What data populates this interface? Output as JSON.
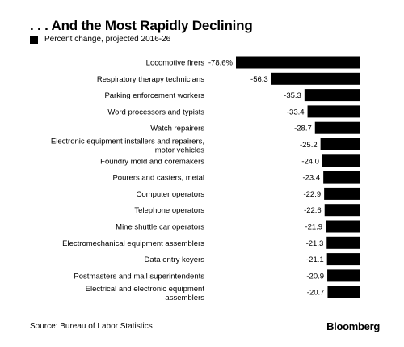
{
  "title": ". . . And the Most Rapidly Declining",
  "source": "Source: Bureau of Labor Statistics",
  "brand": "Bloomberg",
  "colors": {
    "bar": "#000000",
    "text": "#000000",
    "background": "#ffffff"
  },
  "chart_data": {
    "type": "bar",
    "orientation": "horizontal",
    "legend": "Percent change, projected 2016-26",
    "legend_position": "top-left",
    "grid": false,
    "xlim": [
      -78.6,
      0
    ],
    "categories": [
      "Locomotive firers",
      "Respiratory therapy technicians",
      "Parking enforcement workers",
      "Word processors and typists",
      "Watch repairers",
      "Electronic equipment installers and repairers, motor vehicles",
      "Foundry mold and coremakers",
      "Pourers and casters, metal",
      "Computer operators",
      "Telephone operators",
      "Mine shuttle car operators",
      "Electromechanical equipment assemblers",
      "Data entry keyers",
      "Postmasters and mail superintendents",
      "Electrical and electronic equipment assemblers"
    ],
    "values": [
      -78.6,
      -56.3,
      -35.3,
      -33.4,
      -28.7,
      -25.2,
      -24.0,
      -23.4,
      -22.9,
      -22.6,
      -21.9,
      -21.3,
      -21.1,
      -20.9,
      -20.7
    ],
    "data_labels": [
      "-78.6%",
      "-56.3",
      "-35.3",
      "-33.4",
      "-28.7",
      "-25.2",
      "-24.0",
      "-23.4",
      "-22.9",
      "-22.6",
      "-21.9",
      "-21.3",
      "-21.1",
      "-20.9",
      "-20.7"
    ]
  }
}
